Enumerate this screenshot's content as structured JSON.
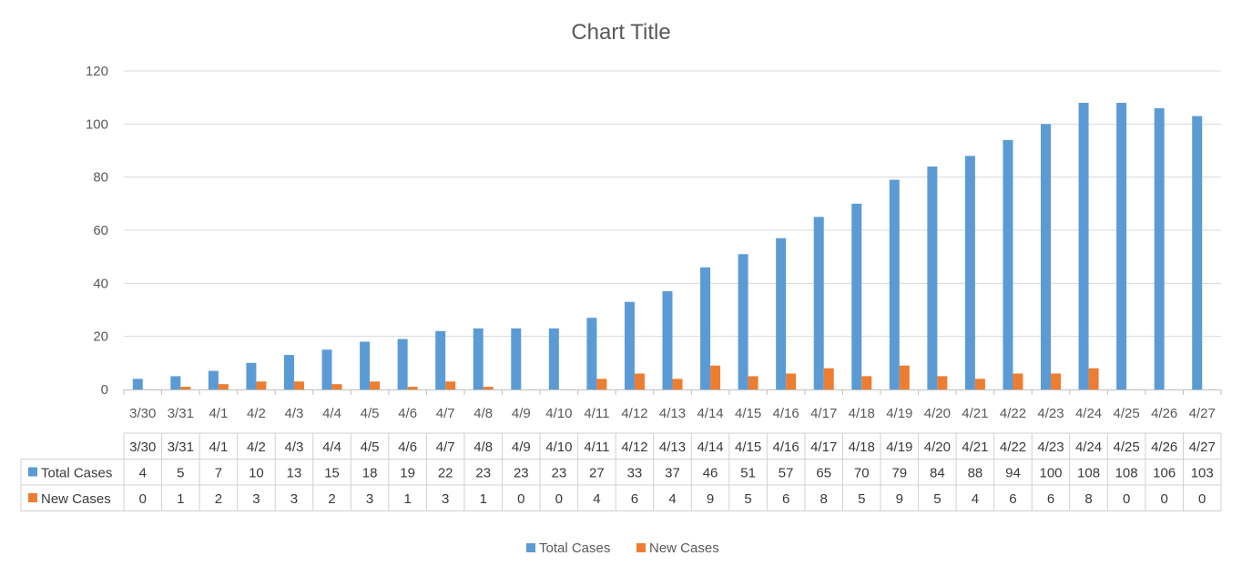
{
  "chart_data": {
    "type": "bar",
    "title": "Chart Title",
    "categories": [
      "3/30",
      "3/31",
      "4/1",
      "4/2",
      "4/3",
      "4/4",
      "4/5",
      "4/6",
      "4/7",
      "4/8",
      "4/9",
      "4/10",
      "4/11",
      "4/12",
      "4/13",
      "4/14",
      "4/15",
      "4/16",
      "4/17",
      "4/18",
      "4/19",
      "4/20",
      "4/21",
      "4/22",
      "4/23",
      "4/24",
      "4/25",
      "4/26",
      "4/27"
    ],
    "series": [
      {
        "name": "Total Cases",
        "color": "#5B9BD5",
        "values": [
          4,
          5,
          7,
          10,
          13,
          15,
          18,
          19,
          22,
          23,
          23,
          23,
          27,
          33,
          37,
          46,
          51,
          57,
          65,
          70,
          79,
          84,
          88,
          94,
          100,
          108,
          108,
          106,
          103
        ]
      },
      {
        "name": "New Cases",
        "color": "#ED7D31",
        "values": [
          0,
          1,
          2,
          3,
          3,
          2,
          3,
          1,
          3,
          1,
          0,
          0,
          4,
          6,
          4,
          9,
          5,
          6,
          8,
          5,
          9,
          5,
          4,
          6,
          6,
          8,
          0,
          0,
          0
        ]
      }
    ],
    "ylim": [
      0,
      120
    ],
    "yticks": [
      0,
      20,
      40,
      60,
      80,
      100,
      120
    ],
    "grid": true,
    "legend": "bottom",
    "data_table": true
  }
}
